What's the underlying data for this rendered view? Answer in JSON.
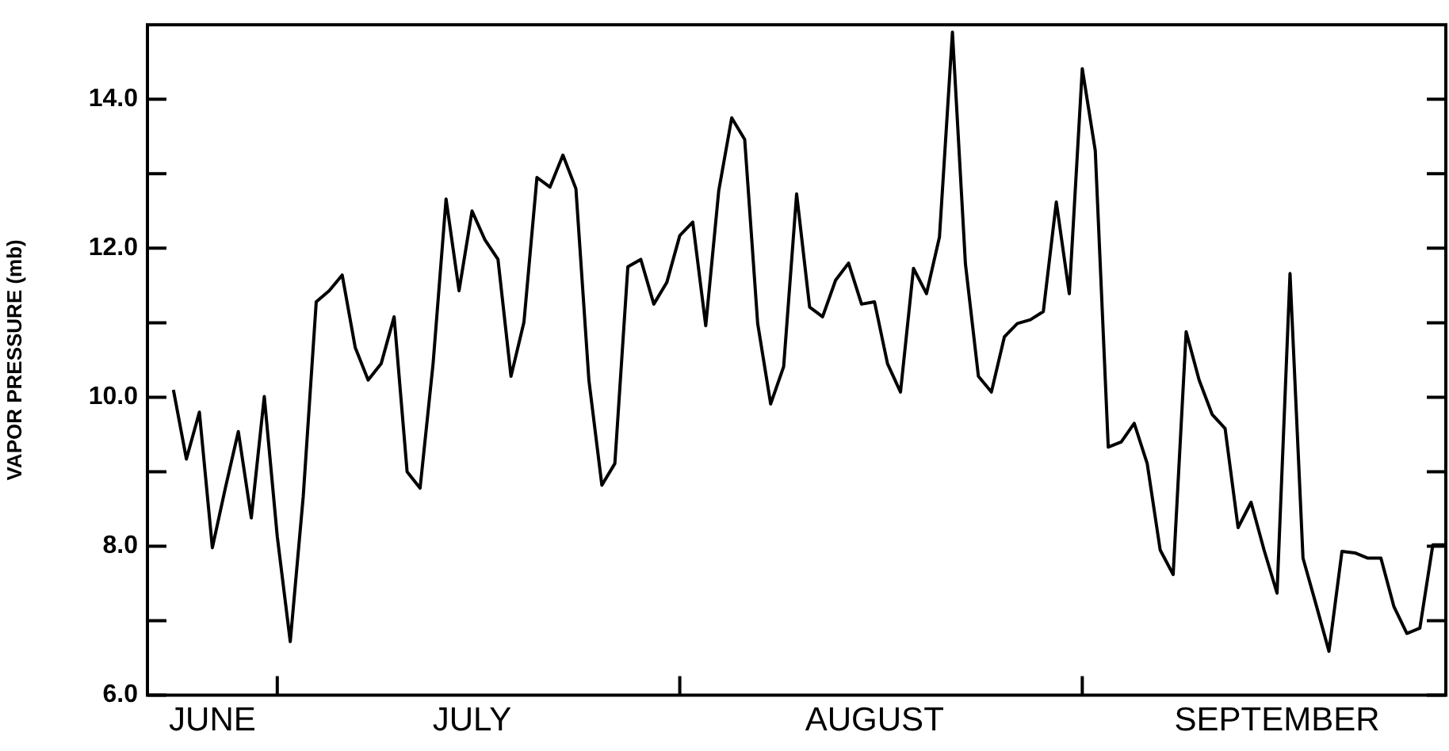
{
  "chart_data": {
    "type": "line",
    "ylabel": "VAPOR PRESSURE (mb)",
    "x": [
      "--06-23",
      "--06-24",
      "--06-25",
      "--06-26",
      "--06-27",
      "--06-28",
      "--06-29",
      "--06-30",
      "--07-01",
      "--07-02",
      "--07-03",
      "--07-04",
      "--07-05",
      "--07-06",
      "--07-07",
      "--07-08",
      "--07-09",
      "--07-10",
      "--07-11",
      "--07-12",
      "--07-13",
      "--07-14",
      "--07-15",
      "--07-16",
      "--07-17",
      "--07-18",
      "--07-19",
      "--07-20",
      "--07-21",
      "--07-22",
      "--07-23",
      "--07-24",
      "--07-25",
      "--07-26",
      "--07-27",
      "--07-28",
      "--07-29",
      "--07-30",
      "--07-31",
      "--08-01",
      "--08-02",
      "--08-03",
      "--08-04",
      "--08-05",
      "--08-06",
      "--08-07",
      "--08-08",
      "--08-09",
      "--08-10",
      "--08-11",
      "--08-12",
      "--08-13",
      "--08-14",
      "--08-15",
      "--08-16",
      "--08-17",
      "--08-18",
      "--08-19",
      "--08-20",
      "--08-21",
      "--08-22",
      "--08-23",
      "--08-24",
      "--08-25",
      "--08-26",
      "--08-27",
      "--08-28",
      "--08-29",
      "--08-30",
      "--08-31",
      "--09-01",
      "--09-02",
      "--09-03",
      "--09-04",
      "--09-05",
      "--09-06",
      "--09-07",
      "--09-08",
      "--09-09",
      "--09-10",
      "--09-11",
      "--09-12",
      "--09-13",
      "--09-14",
      "--09-15",
      "--09-16",
      "--09-17",
      "--09-18",
      "--09-19",
      "--09-20",
      "--09-21",
      "--09-22",
      "--09-23",
      "--09-24",
      "--09-25",
      "--09-26",
      "--09-27",
      "--09-28",
      "--09-29"
    ],
    "series": [
      {
        "color": "#000000",
        "values": [
          10.1,
          9.17,
          9.8,
          7.98,
          8.78,
          9.54,
          8.38,
          10.01,
          8.13,
          6.72,
          8.67,
          11.28,
          11.43,
          11.64,
          10.67,
          10.23,
          10.45,
          11.08,
          9.0,
          8.78,
          10.45,
          12.66,
          11.43,
          12.5,
          12.11,
          11.85,
          10.28,
          11.01,
          12.95,
          12.82,
          13.25,
          12.8,
          10.23,
          8.82,
          9.11,
          11.75,
          11.85,
          11.25,
          11.54,
          12.17,
          12.35,
          10.96,
          12.77,
          13.75,
          13.46,
          10.99,
          9.91,
          10.41,
          12.73,
          11.21,
          11.08,
          11.57,
          11.8,
          11.25,
          11.28,
          10.45,
          10.07,
          11.73,
          11.39,
          12.15,
          14.9,
          11.79,
          10.28,
          10.07,
          10.81,
          10.99,
          11.04,
          11.15,
          12.62,
          11.39,
          14.41,
          13.31,
          9.33,
          9.4,
          9.65,
          9.11,
          7.95,
          7.62,
          10.88,
          10.23,
          9.77,
          9.58,
          8.25,
          8.59,
          7.95,
          7.37,
          11.66,
          7.84,
          7.22,
          6.59,
          7.93,
          7.91,
          7.84,
          7.84,
          7.19,
          6.83,
          6.9,
          8.02,
          8.02
        ]
      }
    ],
    "xlim": [
      "--06-21",
      "--09-29"
    ],
    "xticks": [
      {
        "value": "--06-26",
        "label": "JUNE"
      },
      {
        "value": "--07-01",
        "label": null
      },
      {
        "value": "--07-16",
        "label": "JULY"
      },
      {
        "value": "--08-01",
        "label": null
      },
      {
        "value": "--08-16",
        "label": "AUGUST"
      },
      {
        "value": "--09-01",
        "label": null
      },
      {
        "value": "--09-16",
        "label": "SEPTEMBER"
      }
    ],
    "ylim": [
      6,
      15
    ],
    "yticks": [
      {
        "value": 6,
        "label": "6.0"
      },
      {
        "value": 7,
        "label": null
      },
      {
        "value": 8,
        "label": "8.0"
      },
      {
        "value": 9,
        "label": null
      },
      {
        "value": 10,
        "label": "10.0"
      },
      {
        "value": 11,
        "label": null
      },
      {
        "value": 12,
        "label": "12.0"
      },
      {
        "value": 13,
        "label": null
      },
      {
        "value": 14,
        "label": "14.0"
      }
    ],
    "grid": false,
    "legend": false,
    "marker": "none",
    "line_style": "solid"
  }
}
